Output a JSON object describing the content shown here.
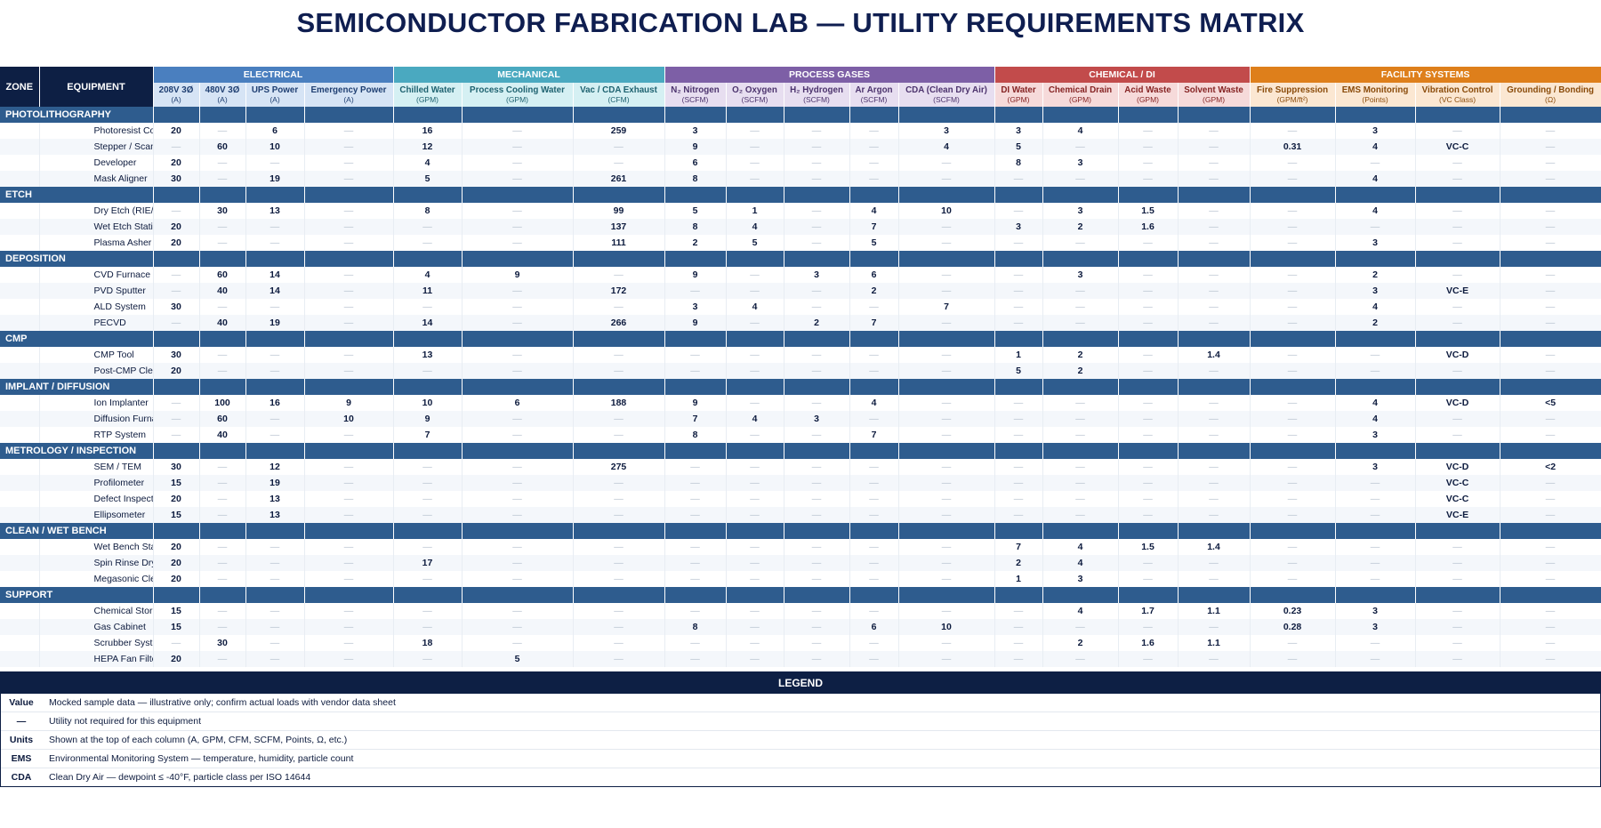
{
  "title": "SEMICONDUCTOR FABRICATION LAB — UTILITY REQUIREMENTS MATRIX",
  "head": {
    "zone": "ZONE",
    "equipment": "EQUIPMENT"
  },
  "groups": [
    {
      "key": "elec",
      "label": "ELECTRICAL",
      "span": 4
    },
    {
      "key": "mech",
      "label": "MECHANICAL",
      "span": 3
    },
    {
      "key": "gas",
      "label": "PROCESS GASES",
      "span": 5
    },
    {
      "key": "chem",
      "label": "CHEMICAL / DI",
      "span": 4
    },
    {
      "key": "fac",
      "label": "FACILITY SYSTEMS",
      "span": 4
    }
  ],
  "columns": [
    {
      "label": "208V 3Ø",
      "unit": "(A)",
      "group": "elec"
    },
    {
      "label": "480V 3Ø",
      "unit": "(A)",
      "group": "elec"
    },
    {
      "label": "UPS Power",
      "unit": "(A)",
      "group": "elec"
    },
    {
      "label": "Emergency Power",
      "unit": "(A)",
      "group": "elec"
    },
    {
      "label": "Chilled Water",
      "unit": "(GPM)",
      "group": "mech"
    },
    {
      "label": "Process Cooling Water",
      "unit": "(GPM)",
      "group": "mech"
    },
    {
      "label": "Vac / CDA Exhaust",
      "unit": "(CFM)",
      "group": "mech"
    },
    {
      "label": "N₂ Nitrogen",
      "unit": "(SCFM)",
      "group": "gas"
    },
    {
      "label": "O₂ Oxygen",
      "unit": "(SCFM)",
      "group": "gas"
    },
    {
      "label": "H₂ Hydrogen",
      "unit": "(SCFM)",
      "group": "gas"
    },
    {
      "label": "Ar Argon",
      "unit": "(SCFM)",
      "group": "gas"
    },
    {
      "label": "CDA (Clean Dry Air)",
      "unit": "(SCFM)",
      "group": "gas"
    },
    {
      "label": "DI Water",
      "unit": "(GPM)",
      "group": "chem"
    },
    {
      "label": "Chemical Drain",
      "unit": "(GPM)",
      "group": "chem"
    },
    {
      "label": "Acid Waste",
      "unit": "(GPM)",
      "group": "chem"
    },
    {
      "label": "Solvent Waste",
      "unit": "(GPM)",
      "group": "chem"
    },
    {
      "label": "Fire Suppression",
      "unit": "(GPM/ft²)",
      "group": "fac"
    },
    {
      "label": "EMS Monitoring",
      "unit": "(Points)",
      "group": "fac"
    },
    {
      "label": "Vibration Control",
      "unit": "(VC Class)",
      "group": "fac"
    },
    {
      "label": "Grounding / Bonding",
      "unit": "(Ω)",
      "group": "fac"
    }
  ],
  "na": "—",
  "zones": [
    {
      "name": "PHOTOLITHOGRAPHY",
      "rows": [
        {
          "equipment": "Photoresist Coater",
          "values": [
            "20",
            "",
            "6",
            "",
            "16",
            "",
            "259",
            "3",
            "",
            "",
            "",
            "3",
            "3",
            "4",
            "",
            "",
            "",
            "3",
            "",
            ""
          ]
        },
        {
          "equipment": "Stepper / Scanner",
          "values": [
            "",
            "60",
            "10",
            "",
            "12",
            "",
            "",
            "9",
            "",
            "",
            "",
            "4",
            "5",
            "",
            "",
            "",
            "0.31",
            "4",
            "VC-C",
            ""
          ]
        },
        {
          "equipment": "Developer",
          "values": [
            "20",
            "",
            "",
            "",
            "4",
            "",
            "",
            "6",
            "",
            "",
            "",
            "",
            "8",
            "3",
            "",
            "",
            "",
            "",
            "",
            ""
          ]
        },
        {
          "equipment": "Mask Aligner",
          "values": [
            "30",
            "",
            "19",
            "",
            "5",
            "",
            "261",
            "8",
            "",
            "",
            "",
            "",
            "",
            "",
            "",
            "",
            "",
            "4",
            "",
            ""
          ]
        }
      ]
    },
    {
      "name": "ETCH",
      "rows": [
        {
          "equipment": "Dry Etch (RIE/ICP)",
          "values": [
            "",
            "30",
            "13",
            "",
            "8",
            "",
            "99",
            "5",
            "1",
            "",
            "4",
            "10",
            "",
            "3",
            "1.5",
            "",
            "",
            "4",
            "",
            ""
          ]
        },
        {
          "equipment": "Wet Etch Station",
          "values": [
            "20",
            "",
            "",
            "",
            "",
            "",
            "137",
            "8",
            "4",
            "",
            "7",
            "",
            "3",
            "2",
            "1.6",
            "",
            "",
            "",
            "",
            ""
          ]
        },
        {
          "equipment": "Plasma Asher",
          "values": [
            "20",
            "",
            "",
            "",
            "",
            "",
            "111",
            "2",
            "5",
            "",
            "5",
            "",
            "",
            "",
            "",
            "",
            "",
            "3",
            "",
            ""
          ]
        }
      ]
    },
    {
      "name": "DEPOSITION",
      "rows": [
        {
          "equipment": "CVD Furnace",
          "values": [
            "",
            "60",
            "14",
            "",
            "4",
            "9",
            "",
            "9",
            "",
            "3",
            "6",
            "",
            "",
            "3",
            "",
            "",
            "",
            "2",
            "",
            ""
          ]
        },
        {
          "equipment": "PVD Sputter",
          "values": [
            "",
            "40",
            "14",
            "",
            "11",
            "",
            "172",
            "",
            "",
            "",
            "2",
            "",
            "",
            "",
            "",
            "",
            "",
            "3",
            "VC-E",
            ""
          ]
        },
        {
          "equipment": "ALD System",
          "values": [
            "30",
            "",
            "",
            "",
            "",
            "",
            "",
            "3",
            "4",
            "",
            "",
            "7",
            "",
            "",
            "",
            "",
            "",
            "4",
            "",
            ""
          ]
        },
        {
          "equipment": "PECVD",
          "values": [
            "",
            "40",
            "19",
            "",
            "14",
            "",
            "266",
            "9",
            "",
            "2",
            "7",
            "",
            "",
            "",
            "",
            "",
            "",
            "2",
            "",
            ""
          ]
        }
      ]
    },
    {
      "name": "CMP",
      "rows": [
        {
          "equipment": "CMP Tool",
          "values": [
            "30",
            "",
            "",
            "",
            "13",
            "",
            "",
            "",
            "",
            "",
            "",
            "",
            "1",
            "2",
            "",
            "1.4",
            "",
            "",
            "VC-D",
            ""
          ]
        },
        {
          "equipment": "Post-CMP Cleaner",
          "values": [
            "20",
            "",
            "",
            "",
            "",
            "",
            "",
            "",
            "",
            "",
            "",
            "",
            "5",
            "2",
            "",
            "",
            "",
            "",
            "",
            ""
          ]
        }
      ]
    },
    {
      "name": "IMPLANT / DIFFUSION",
      "rows": [
        {
          "equipment": "Ion Implanter",
          "values": [
            "",
            "100",
            "16",
            "9",
            "10",
            "6",
            "188",
            "9",
            "",
            "",
            "4",
            "",
            "",
            "",
            "",
            "",
            "",
            "4",
            "VC-D",
            "<5"
          ]
        },
        {
          "equipment": "Diffusion Furnace",
          "values": [
            "",
            "60",
            "",
            "10",
            "9",
            "",
            "",
            "7",
            "4",
            "3",
            "",
            "",
            "",
            "",
            "",
            "",
            "",
            "4",
            "",
            ""
          ]
        },
        {
          "equipment": "RTP System",
          "values": [
            "",
            "40",
            "",
            "",
            "7",
            "",
            "",
            "8",
            "",
            "",
            "7",
            "",
            "",
            "",
            "",
            "",
            "",
            "3",
            "",
            ""
          ]
        }
      ]
    },
    {
      "name": "METROLOGY / INSPECTION",
      "rows": [
        {
          "equipment": "SEM / TEM",
          "values": [
            "30",
            "",
            "12",
            "",
            "",
            "",
            "275",
            "",
            "",
            "",
            "",
            "",
            "",
            "",
            "",
            "",
            "",
            "3",
            "VC-D",
            "<2"
          ]
        },
        {
          "equipment": "Profilometer",
          "values": [
            "15",
            "",
            "19",
            "",
            "",
            "",
            "",
            "",
            "",
            "",
            "",
            "",
            "",
            "",
            "",
            "",
            "",
            "",
            "VC-C",
            ""
          ]
        },
        {
          "equipment": "Defect Inspection",
          "values": [
            "20",
            "",
            "13",
            "",
            "",
            "",
            "",
            "",
            "",
            "",
            "",
            "",
            "",
            "",
            "",
            "",
            "",
            "",
            "VC-C",
            ""
          ]
        },
        {
          "equipment": "Ellipsometer",
          "values": [
            "15",
            "",
            "13",
            "",
            "",
            "",
            "",
            "",
            "",
            "",
            "",
            "",
            "",
            "",
            "",
            "",
            "",
            "",
            "VC-E",
            ""
          ]
        }
      ]
    },
    {
      "name": "CLEAN / WET BENCH",
      "rows": [
        {
          "equipment": "Wet Bench Station",
          "values": [
            "20",
            "",
            "",
            "",
            "",
            "",
            "",
            "",
            "",
            "",
            "",
            "",
            "7",
            "4",
            "1.5",
            "1.4",
            "",
            "",
            "",
            ""
          ]
        },
        {
          "equipment": "Spin Rinse Dryer",
          "values": [
            "20",
            "",
            "",
            "",
            "17",
            "",
            "",
            "",
            "",
            "",
            "",
            "",
            "2",
            "4",
            "",
            "",
            "",
            "",
            "",
            ""
          ]
        },
        {
          "equipment": "Megasonic Cleaner",
          "values": [
            "20",
            "",
            "",
            "",
            "",
            "",
            "",
            "",
            "",
            "",
            "",
            "",
            "1",
            "3",
            "",
            "",
            "",
            "",
            "",
            ""
          ]
        }
      ]
    },
    {
      "name": "SUPPORT",
      "rows": [
        {
          "equipment": "Chemical Storage",
          "values": [
            "15",
            "",
            "",
            "",
            "",
            "",
            "",
            "",
            "",
            "",
            "",
            "",
            "",
            "4",
            "1.7",
            "1.1",
            "0.23",
            "3",
            "",
            ""
          ]
        },
        {
          "equipment": "Gas Cabinet",
          "values": [
            "15",
            "",
            "",
            "",
            "",
            "",
            "",
            "8",
            "",
            "",
            "6",
            "10",
            "",
            "",
            "",
            "",
            "0.28",
            "3",
            "",
            ""
          ]
        },
        {
          "equipment": "Scrubber System",
          "values": [
            "",
            "30",
            "",
            "",
            "18",
            "",
            "",
            "",
            "",
            "",
            "",
            "",
            "",
            "2",
            "1.6",
            "1.1",
            "",
            "",
            "",
            ""
          ]
        },
        {
          "equipment": "HEPA Fan Filter Unit",
          "values": [
            "20",
            "",
            "",
            "",
            "",
            "5",
            "",
            "",
            "",
            "",
            "",
            "",
            "",
            "",
            "",
            "",
            "",
            "",
            "",
            ""
          ]
        }
      ]
    }
  ],
  "legend": {
    "title": "LEGEND",
    "items": [
      {
        "key": "Value",
        "desc": "Mocked sample data — illustrative only; confirm actual loads with vendor data sheet"
      },
      {
        "key": "—",
        "desc": "Utility not required for this equipment"
      },
      {
        "key": "Units",
        "desc": "Shown at the top of each column (A, GPM, CFM, SCFM, Points, Ω, etc.)"
      },
      {
        "key": "EMS",
        "desc": "Environmental Monitoring System — temperature, humidity, particle count"
      },
      {
        "key": "CDA",
        "desc": "Clean Dry Air — dewpoint ≤ -40°F, particle class per ISO 14644"
      }
    ]
  }
}
